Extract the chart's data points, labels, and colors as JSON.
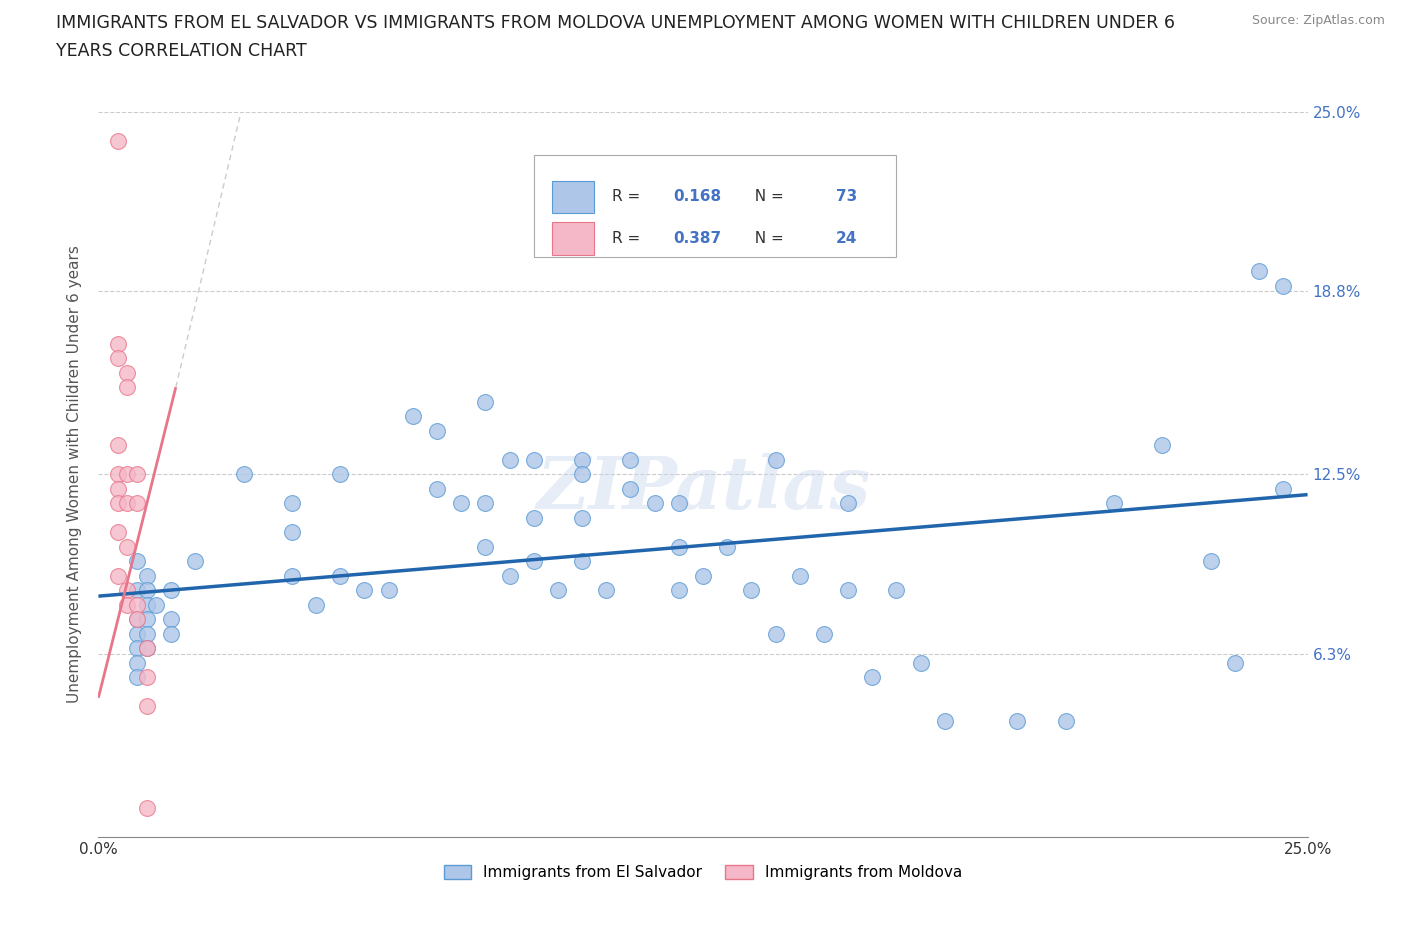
{
  "title_line1": "IMMIGRANTS FROM EL SALVADOR VS IMMIGRANTS FROM MOLDOVA UNEMPLOYMENT AMONG WOMEN WITH CHILDREN UNDER 6",
  "title_line2": "YEARS CORRELATION CHART",
  "source": "Source: ZipAtlas.com",
  "ylabel": "Unemployment Among Women with Children Under 6 years",
  "x_min": 0.0,
  "x_max": 0.25,
  "y_min": 0.0,
  "y_max": 0.25,
  "y_tick_pos": [
    0.0,
    0.063,
    0.125,
    0.188,
    0.25
  ],
  "y_tick_labels_right": [
    "6.3%",
    "12.5%",
    "18.8%",
    "25.0%"
  ],
  "y_tick_pos_right": [
    0.063,
    0.125,
    0.188,
    0.25
  ],
  "watermark": "ZIPatlas",
  "blue_R": "0.168",
  "blue_N": "73",
  "pink_R": "0.387",
  "pink_N": "24",
  "blue_label": "Immigrants from El Salvador",
  "pink_label": "Immigrants from Moldova",
  "blue_scatter_x": [
    0.008,
    0.008,
    0.008,
    0.008,
    0.008,
    0.008,
    0.008,
    0.01,
    0.01,
    0.01,
    0.01,
    0.01,
    0.01,
    0.012,
    0.015,
    0.015,
    0.015,
    0.02,
    0.03,
    0.04,
    0.04,
    0.04,
    0.045,
    0.05,
    0.05,
    0.055,
    0.06,
    0.065,
    0.07,
    0.07,
    0.075,
    0.08,
    0.08,
    0.08,
    0.085,
    0.085,
    0.09,
    0.09,
    0.09,
    0.095,
    0.1,
    0.1,
    0.1,
    0.1,
    0.105,
    0.11,
    0.11,
    0.115,
    0.12,
    0.12,
    0.12,
    0.125,
    0.13,
    0.135,
    0.14,
    0.14,
    0.145,
    0.15,
    0.155,
    0.155,
    0.16,
    0.165,
    0.17,
    0.175,
    0.19,
    0.2,
    0.21,
    0.22,
    0.23,
    0.235,
    0.24,
    0.245,
    0.245
  ],
  "blue_scatter_y": [
    0.095,
    0.085,
    0.075,
    0.07,
    0.065,
    0.06,
    0.055,
    0.09,
    0.085,
    0.08,
    0.075,
    0.07,
    0.065,
    0.08,
    0.085,
    0.075,
    0.07,
    0.095,
    0.125,
    0.115,
    0.105,
    0.09,
    0.08,
    0.125,
    0.09,
    0.085,
    0.085,
    0.145,
    0.14,
    0.12,
    0.115,
    0.15,
    0.115,
    0.1,
    0.13,
    0.09,
    0.13,
    0.11,
    0.095,
    0.085,
    0.13,
    0.125,
    0.11,
    0.095,
    0.085,
    0.13,
    0.12,
    0.115,
    0.115,
    0.1,
    0.085,
    0.09,
    0.1,
    0.085,
    0.13,
    0.07,
    0.09,
    0.07,
    0.115,
    0.085,
    0.055,
    0.085,
    0.06,
    0.04,
    0.04,
    0.04,
    0.115,
    0.135,
    0.095,
    0.06,
    0.195,
    0.12,
    0.19
  ],
  "pink_scatter_x": [
    0.004,
    0.004,
    0.004,
    0.004,
    0.004,
    0.004,
    0.004,
    0.004,
    0.004,
    0.006,
    0.006,
    0.006,
    0.006,
    0.006,
    0.006,
    0.006,
    0.008,
    0.008,
    0.008,
    0.008,
    0.01,
    0.01,
    0.01,
    0.01
  ],
  "pink_scatter_y": [
    0.24,
    0.17,
    0.165,
    0.135,
    0.125,
    0.12,
    0.115,
    0.105,
    0.09,
    0.16,
    0.155,
    0.125,
    0.115,
    0.1,
    0.085,
    0.08,
    0.125,
    0.115,
    0.08,
    0.075,
    0.065,
    0.055,
    0.045,
    0.01
  ],
  "blue_line_x": [
    0.0,
    0.25
  ],
  "blue_line_y": [
    0.083,
    0.118
  ],
  "pink_line_x": [
    0.0,
    0.016
  ],
  "pink_line_y": [
    0.048,
    0.155
  ],
  "scatter_size": 130,
  "scatter_alpha": 0.8,
  "blue_color": "#aec6e8",
  "pink_color": "#f4b8c8",
  "blue_edge": "#5b9bd5",
  "pink_edge": "#e8768a",
  "blue_line_color": "#2166ac",
  "pink_line_color": "#e8768a",
  "bg_color": "#ffffff",
  "grid_color": "#cccccc",
  "accent_color": "#4472c4"
}
